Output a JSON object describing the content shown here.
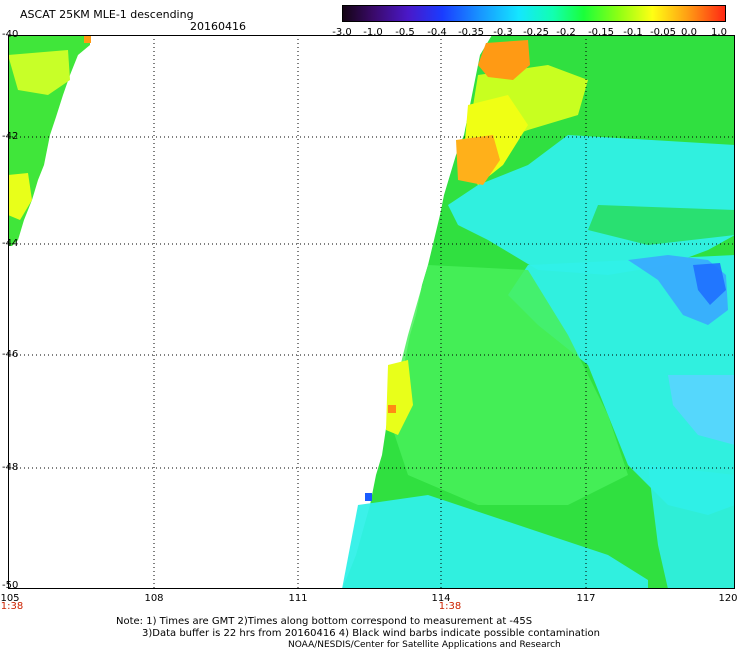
{
  "header": {
    "title": "ASCAT 25KM MLE-1 descending",
    "date": "20160416"
  },
  "colorbar": {
    "labels": [
      "-3.0",
      "-1.0",
      "-0.5",
      "-0.4",
      "-0.35",
      "-0.3",
      "-0.25",
      "-0.2",
      "-0.15",
      "-0.1",
      "-0.05",
      "0.0",
      "1.0"
    ]
  },
  "map": {
    "lat_labels": [
      "-40",
      "-42",
      "-44",
      "-46",
      "-48",
      "-50"
    ],
    "lon_labels": [
      "105",
      "108",
      "111",
      "114",
      "117",
      "120"
    ],
    "time_labels": [
      "1:38",
      "1:38"
    ]
  },
  "footer": {
    "note1": "Note: 1) Times are GMT 2)Times along bottom correspond to measurement at -45S",
    "note2": "3)Data buffer is 22 hrs from 20160416 4) Black wind barbs indicate possible contamination",
    "credit": "NOAA/NESDIS/Center for Satellite Applications and Research"
  }
}
